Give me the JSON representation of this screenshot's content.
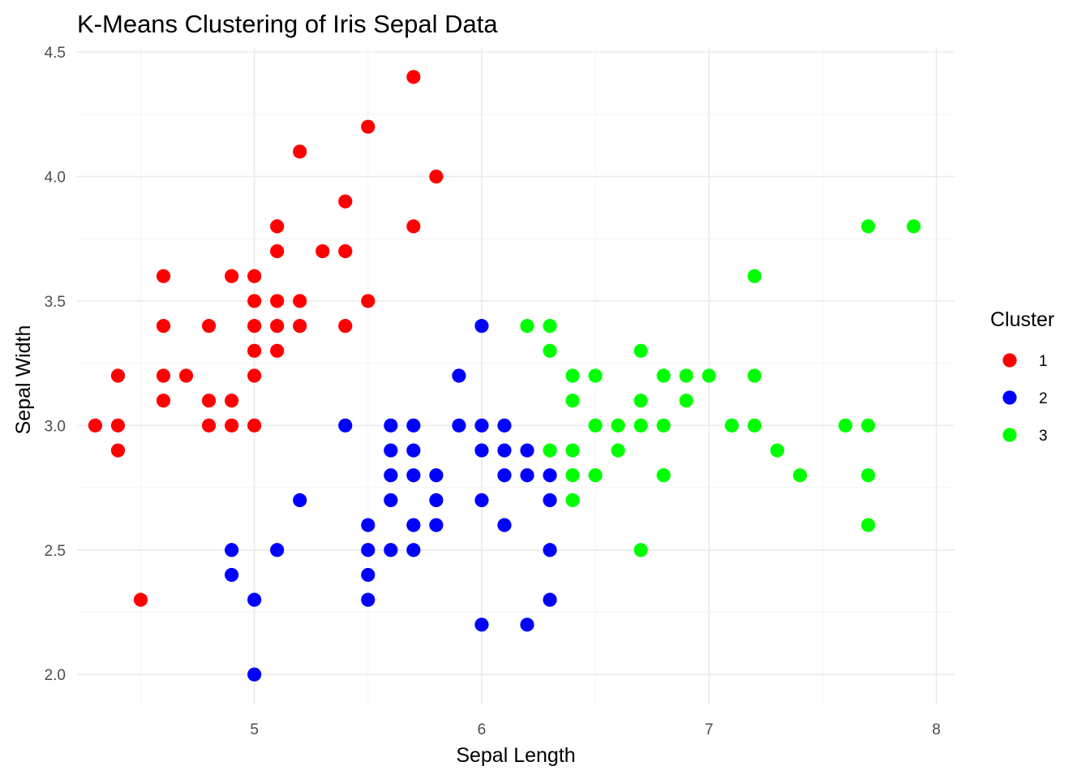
{
  "chart_data": {
    "type": "scatter",
    "title": "K-Means Clustering of Iris Sepal Data",
    "xlabel": "Sepal Length",
    "ylabel": "Sepal Width",
    "xlim": [
      4.22,
      8.08
    ],
    "ylim": [
      1.88,
      4.52
    ],
    "x_ticks": [
      5,
      6,
      7,
      8
    ],
    "y_ticks": [
      2.0,
      2.5,
      3.0,
      3.5,
      4.0,
      4.5
    ],
    "x_tick_labels": [
      "5",
      "6",
      "7",
      "8"
    ],
    "y_tick_labels": [
      "2.0",
      "2.5",
      "3.0",
      "3.5",
      "4.0",
      "4.5"
    ],
    "grid": true,
    "legend": {
      "title": "Cluster",
      "position": "right",
      "entries": [
        {
          "label": "1",
          "color": "#ff0000"
        },
        {
          "label": "2",
          "color": "#0000ff"
        },
        {
          "label": "3",
          "color": "#00ff00"
        }
      ]
    },
    "series": [
      {
        "name": "1",
        "color": "#ff0000",
        "points": [
          [
            5.7,
            4.4
          ],
          [
            5.5,
            4.2
          ],
          [
            5.2,
            4.1
          ],
          [
            5.8,
            4.0
          ],
          [
            5.4,
            3.9
          ],
          [
            5.1,
            3.8
          ],
          [
            5.7,
            3.8
          ],
          [
            5.1,
            3.7
          ],
          [
            5.3,
            3.7
          ],
          [
            5.4,
            3.7
          ],
          [
            4.6,
            3.6
          ],
          [
            4.9,
            3.6
          ],
          [
            5.0,
            3.6
          ],
          [
            5.0,
            3.5
          ],
          [
            5.1,
            3.5
          ],
          [
            5.2,
            3.5
          ],
          [
            5.5,
            3.5
          ],
          [
            4.6,
            3.4
          ],
          [
            4.8,
            3.4
          ],
          [
            5.0,
            3.4
          ],
          [
            5.1,
            3.4
          ],
          [
            5.2,
            3.4
          ],
          [
            5.4,
            3.4
          ],
          [
            5.0,
            3.3
          ],
          [
            5.1,
            3.3
          ],
          [
            4.4,
            3.2
          ],
          [
            4.6,
            3.2
          ],
          [
            4.7,
            3.2
          ],
          [
            5.0,
            3.2
          ],
          [
            4.6,
            3.1
          ],
          [
            4.8,
            3.1
          ],
          [
            4.9,
            3.1
          ],
          [
            4.3,
            3.0
          ],
          [
            4.4,
            3.0
          ],
          [
            4.8,
            3.0
          ],
          [
            4.9,
            3.0
          ],
          [
            5.0,
            3.0
          ],
          [
            4.4,
            2.9
          ],
          [
            4.5,
            2.3
          ]
        ]
      },
      {
        "name": "2",
        "color": "#0000ff",
        "points": [
          [
            6.0,
            3.4
          ],
          [
            5.9,
            3.2
          ],
          [
            5.4,
            3.0
          ],
          [
            5.6,
            3.0
          ],
          [
            5.7,
            3.0
          ],
          [
            5.9,
            3.0
          ],
          [
            6.0,
            3.0
          ],
          [
            6.1,
            3.0
          ],
          [
            5.6,
            2.9
          ],
          [
            5.7,
            2.9
          ],
          [
            6.0,
            2.9
          ],
          [
            6.1,
            2.9
          ],
          [
            6.2,
            2.9
          ],
          [
            5.6,
            2.8
          ],
          [
            5.7,
            2.8
          ],
          [
            5.8,
            2.8
          ],
          [
            6.1,
            2.8
          ],
          [
            6.2,
            2.8
          ],
          [
            6.3,
            2.8
          ],
          [
            5.2,
            2.7
          ],
          [
            5.6,
            2.7
          ],
          [
            5.8,
            2.7
          ],
          [
            6.0,
            2.7
          ],
          [
            6.3,
            2.7
          ],
          [
            5.5,
            2.6
          ],
          [
            5.7,
            2.6
          ],
          [
            5.8,
            2.6
          ],
          [
            6.1,
            2.6
          ],
          [
            4.9,
            2.5
          ],
          [
            5.1,
            2.5
          ],
          [
            5.5,
            2.5
          ],
          [
            5.6,
            2.5
          ],
          [
            5.7,
            2.5
          ],
          [
            6.3,
            2.5
          ],
          [
            4.9,
            2.4
          ],
          [
            5.5,
            2.4
          ],
          [
            5.0,
            2.3
          ],
          [
            5.5,
            2.3
          ],
          [
            6.3,
            2.3
          ],
          [
            6.0,
            2.2
          ],
          [
            6.2,
            2.2
          ],
          [
            5.0,
            2.0
          ]
        ]
      },
      {
        "name": "3",
        "color": "#00ff00",
        "points": [
          [
            7.7,
            3.8
          ],
          [
            7.9,
            3.8
          ],
          [
            7.2,
            3.6
          ],
          [
            6.2,
            3.4
          ],
          [
            6.3,
            3.4
          ],
          [
            6.3,
            3.3
          ],
          [
            6.7,
            3.3
          ],
          [
            6.4,
            3.2
          ],
          [
            6.5,
            3.2
          ],
          [
            6.8,
            3.2
          ],
          [
            6.9,
            3.2
          ],
          [
            7.0,
            3.2
          ],
          [
            7.2,
            3.2
          ],
          [
            6.4,
            3.1
          ],
          [
            6.7,
            3.1
          ],
          [
            6.9,
            3.1
          ],
          [
            6.5,
            3.0
          ],
          [
            6.6,
            3.0
          ],
          [
            6.7,
            3.0
          ],
          [
            6.8,
            3.0
          ],
          [
            7.1,
            3.0
          ],
          [
            7.2,
            3.0
          ],
          [
            7.6,
            3.0
          ],
          [
            7.7,
            3.0
          ],
          [
            6.3,
            2.9
          ],
          [
            6.4,
            2.9
          ],
          [
            6.6,
            2.9
          ],
          [
            7.3,
            2.9
          ],
          [
            6.4,
            2.8
          ],
          [
            6.5,
            2.8
          ],
          [
            6.8,
            2.8
          ],
          [
            7.4,
            2.8
          ],
          [
            7.7,
            2.8
          ],
          [
            6.4,
            2.7
          ],
          [
            7.7,
            2.6
          ],
          [
            6.7,
            2.5
          ]
        ]
      }
    ]
  }
}
